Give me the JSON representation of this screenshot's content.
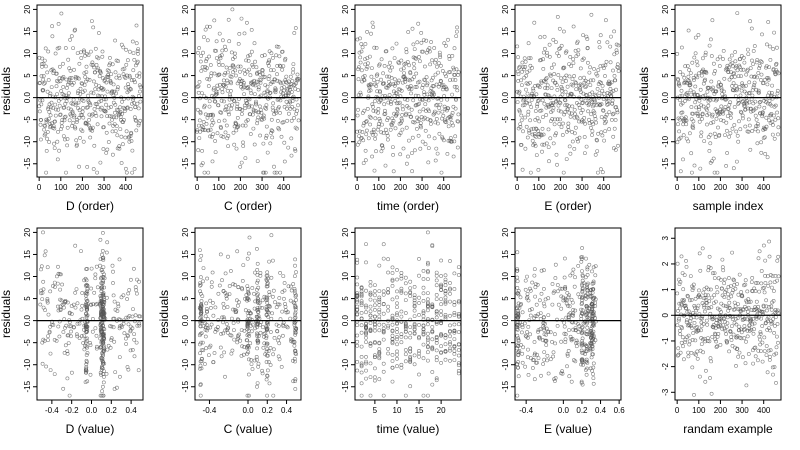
{
  "chart_data": [
    {
      "type": "scatter",
      "xlabel": "D (order)",
      "ylabel": "residuals",
      "x_mode": "order",
      "xlim": [
        -10,
        480
      ],
      "xticks": [
        0,
        100,
        200,
        300,
        400
      ],
      "ylim": [
        -18,
        21
      ],
      "yticks": [
        -15,
        -10,
        -5,
        "0.0",
        5,
        10,
        15,
        20
      ],
      "hline": 0,
      "points": {
        "n": 470,
        "seed": 11,
        "spread": 7,
        "y_range": [
          -17,
          20
        ]
      }
    },
    {
      "type": "scatter",
      "xlabel": "C (order)",
      "ylabel": "residuals",
      "x_mode": "order",
      "xlim": [
        -10,
        480
      ],
      "xticks": [
        0,
        100,
        200,
        300,
        400
      ],
      "ylim": [
        -18,
        21
      ],
      "yticks": [
        -15,
        -10,
        -5,
        "0.0",
        5,
        10,
        15,
        20
      ],
      "hline": 0,
      "points": {
        "n": 470,
        "seed": 23,
        "spread": 7,
        "y_range": [
          -17,
          20
        ]
      }
    },
    {
      "type": "scatter",
      "xlabel": "time (order)",
      "ylabel": "residuals",
      "x_mode": "order",
      "xlim": [
        -10,
        480
      ],
      "xticks": [
        0,
        100,
        200,
        300,
        400
      ],
      "ylim": [
        -18,
        21
      ],
      "yticks": [
        -15,
        -10,
        -5,
        "0.0",
        5,
        10,
        15,
        20
      ],
      "hline": 0,
      "points": {
        "n": 470,
        "seed": 37,
        "spread": 7,
        "y_range": [
          -17,
          20
        ]
      }
    },
    {
      "type": "scatter",
      "xlabel": "E (order)",
      "ylabel": "residuals",
      "x_mode": "order",
      "xlim": [
        -10,
        480
      ],
      "xticks": [
        0,
        100,
        200,
        300,
        400
      ],
      "ylim": [
        -18,
        21
      ],
      "yticks": [
        -15,
        -10,
        -5,
        "0.0",
        5,
        10,
        15,
        20
      ],
      "hline": 0,
      "points": {
        "n": 470,
        "seed": 41,
        "spread": 7,
        "y_range": [
          -17,
          20
        ]
      }
    },
    {
      "type": "scatter",
      "xlabel": "sample index",
      "ylabel": "residuals",
      "x_mode": "order",
      "xlim": [
        -10,
        480
      ],
      "xticks": [
        0,
        100,
        200,
        300,
        400
      ],
      "ylim": [
        -18,
        21
      ],
      "yticks": [
        -15,
        -10,
        -5,
        "0.0",
        5,
        10,
        15,
        20
      ],
      "hline": 0,
      "points": {
        "n": 470,
        "seed": 53,
        "spread": 7,
        "y_range": [
          -17,
          20
        ]
      }
    },
    {
      "type": "scatter",
      "xlabel": "D (value)",
      "ylabel": "residuals",
      "x_mode": "value",
      "xlim": [
        -0.55,
        0.52
      ],
      "xticks": [
        -0.4,
        -0.2,
        0.0,
        0.2,
        0.4
      ],
      "xtick_labels": [
        "-0.4",
        "-0.2",
        "0.0",
        "0.2",
        "0.4"
      ],
      "ylim": [
        -18,
        21
      ],
      "yticks": [
        -15,
        -10,
        -5,
        "0.0",
        5,
        10,
        15,
        20
      ],
      "hline": 0,
      "points": {
        "n": 470,
        "seed": 61,
        "spread": 7,
        "y_range": [
          -17,
          20
        ],
        "x_clusters": [
          -0.05,
          0.1,
          0.12
        ],
        "x_range": [
          -0.52,
          0.5
        ]
      }
    },
    {
      "type": "scatter",
      "xlabel": "C (value)",
      "ylabel": "residuals",
      "x_mode": "value",
      "xlim": [
        -0.55,
        0.55
      ],
      "xticks": [
        -0.4,
        0.0,
        0.2,
        0.4
      ],
      "xtick_labels": [
        "-0.4",
        "0.0",
        "0.2",
        "0.4"
      ],
      "ylim": [
        -18,
        21
      ],
      "yticks": [
        -15,
        -10,
        -5,
        "0.0",
        5,
        10,
        15,
        20
      ],
      "hline": 0,
      "points": {
        "n": 470,
        "seed": 71,
        "spread": 7,
        "y_range": [
          -17,
          20
        ],
        "x_clusters": [
          -0.49,
          0.49,
          0.0,
          0.1,
          0.2
        ],
        "x_range": [
          -0.5,
          0.5
        ]
      }
    },
    {
      "type": "scatter",
      "xlabel": "time (value)",
      "ylabel": "residuals",
      "x_mode": "value",
      "xlim": [
        0.5,
        24.5
      ],
      "xticks": [
        5,
        10,
        15,
        20
      ],
      "xtick_labels": [
        "5",
        "10",
        "15",
        "20"
      ],
      "ylim": [
        -18,
        21
      ],
      "yticks": [
        -15,
        -10,
        -5,
        "0.0",
        5,
        10,
        15,
        20
      ],
      "hline": 0,
      "points": {
        "n": 470,
        "seed": 83,
        "spread": 7,
        "y_range": [
          -17,
          20
        ],
        "x_discrete": [
          1,
          2,
          3,
          4,
          5,
          6,
          7,
          8,
          9,
          10,
          11,
          12,
          13,
          14,
          15,
          16,
          17,
          18,
          19,
          20,
          21,
          22,
          23,
          24
        ]
      }
    },
    {
      "type": "scatter",
      "xlabel": "E (value)",
      "ylabel": "residuals",
      "x_mode": "value",
      "xlim": [
        -0.52,
        0.62
      ],
      "xticks": [
        -0.4,
        0.0,
        0.2,
        0.4,
        0.6
      ],
      "xtick_labels": [
        "-0.4",
        "0.0",
        "0.2",
        "0.4",
        "0.6"
      ],
      "ylim": [
        -18,
        21
      ],
      "yticks": [
        -15,
        -10,
        -5,
        "0.0",
        5,
        10,
        15,
        20
      ],
      "hline": 0,
      "points": {
        "n": 470,
        "seed": 97,
        "spread": 7,
        "y_range": [
          -17,
          20
        ],
        "x_clusters": [
          -0.49,
          0.2,
          0.25,
          0.3,
          0.32
        ],
        "x_range": [
          -0.5,
          0.35
        ]
      }
    },
    {
      "type": "scatter",
      "xlabel": "randam example",
      "ylabel": "residuals",
      "x_mode": "order",
      "xlim": [
        -10,
        480
      ],
      "xticks": [
        0,
        100,
        200,
        300,
        400
      ],
      "ylim": [
        -3.3,
        3.4
      ],
      "yticks": [
        -3,
        -2,
        -1,
        0,
        1,
        2,
        3
      ],
      "hline": 0,
      "points": {
        "n": 470,
        "seed": 109,
        "spread": 1.05,
        "y_range": [
          -3.1,
          3.2
        ]
      }
    }
  ]
}
